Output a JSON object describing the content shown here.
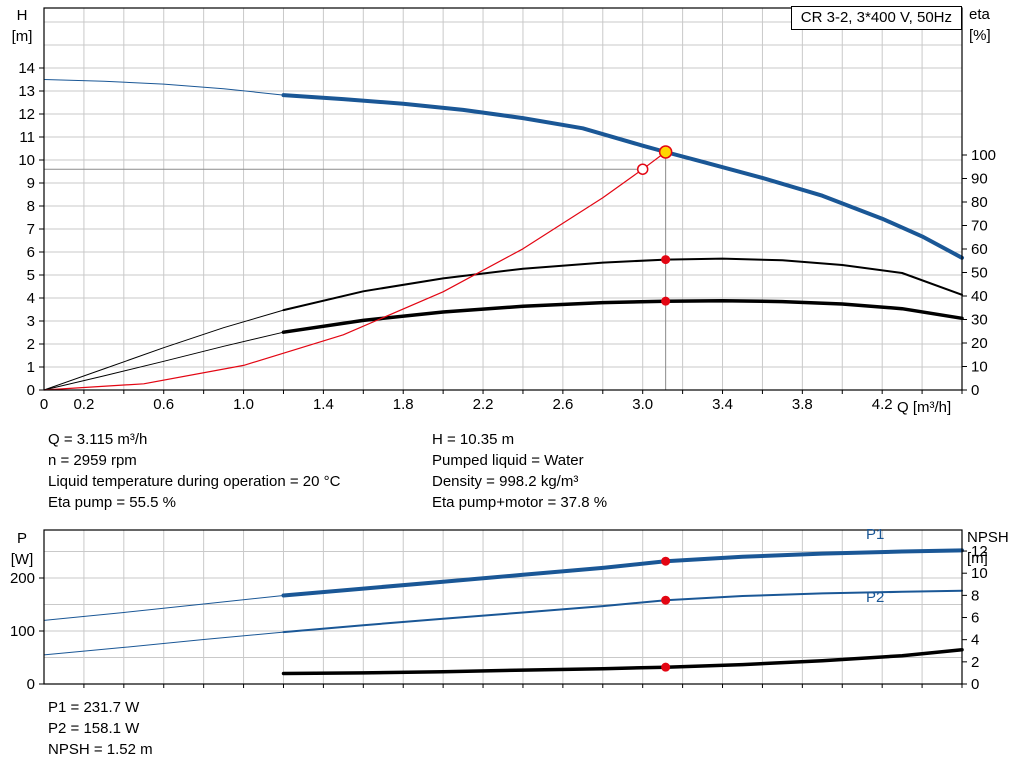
{
  "title_box": "CR 3-2, 3*400 V, 50Hz",
  "colors": {
    "blue": "#1a5796",
    "black": "#000000",
    "red": "#e30613",
    "yellow": "#ffd500",
    "grid": "#c9c9c9",
    "guide": "#8c8c8c"
  },
  "axis_labels": {
    "h_line1": "H",
    "h_line2": "[m]",
    "eta_line1": "eta",
    "eta_line2": "[%]",
    "q": "Q [m³/h]",
    "p_line1": "P",
    "p_line2": "[W]",
    "npsh_line1": "NPSH",
    "npsh_line2": "[m]"
  },
  "info": {
    "left": [
      "Q = 3.115 m³/h",
      "n = 2959 rpm",
      "Liquid temperature during operation = 20 °C",
      "Eta pump = 55.5 %"
    ],
    "right": [
      "H = 10.35 m",
      "Pumped liquid = Water",
      "Density = 998.2 kg/m³",
      "Eta pump+motor = 37.8 %"
    ],
    "bottom": [
      "P1 = 231.7 W",
      "P2 = 158.1 W",
      "NPSH = 1.52 m"
    ]
  },
  "chart_data": [
    {
      "type": "line",
      "name": "QH and efficiency curves",
      "x": {
        "label": "Q [m³/h]",
        "min": 0,
        "max": 4.6,
        "grid_step": 0.2,
        "ticks": [
          {
            "v": 0,
            "t": "0"
          },
          {
            "v": 0.2,
            "t": "0.2"
          },
          {
            "v": 0.6,
            "t": "0.6"
          },
          {
            "v": 1.0,
            "t": "1.0"
          },
          {
            "v": 1.4,
            "t": "1.4"
          },
          {
            "v": 1.8,
            "t": "1.8"
          },
          {
            "v": 2.2,
            "t": "2.2"
          },
          {
            "v": 2.6,
            "t": "2.6"
          },
          {
            "v": 3.0,
            "t": "3.0"
          },
          {
            "v": 3.4,
            "t": "3.4"
          },
          {
            "v": 3.8,
            "t": "3.8"
          },
          {
            "v": 4.2,
            "t": "4.2"
          }
        ]
      },
      "y_left": {
        "label": "H [m]",
        "min": 0,
        "max": 16.6,
        "grid_step": 1,
        "ticks": [
          0,
          1,
          2,
          3,
          4,
          5,
          6,
          7,
          8,
          9,
          10,
          11,
          12,
          13,
          14
        ]
      },
      "y_right": {
        "label": "eta [%]",
        "min": 0,
        "max": 100,
        "ticks": [
          0,
          10,
          20,
          30,
          40,
          50,
          60,
          70,
          80,
          90,
          100
        ]
      },
      "series": [
        {
          "id": "qh-curve-lead",
          "axis": "H",
          "color": "blue",
          "width": 1,
          "points": [
            [
              0,
              13.5
            ],
            [
              0.3,
              13.42
            ],
            [
              0.6,
              13.3
            ],
            [
              0.9,
              13.1
            ],
            [
              1.2,
              12.82
            ]
          ]
        },
        {
          "id": "qh-curve",
          "axis": "H",
          "color": "blue",
          "width": 4,
          "points": [
            [
              1.2,
              12.82
            ],
            [
              1.5,
              12.65
            ],
            [
              1.8,
              12.45
            ],
            [
              2.1,
              12.18
            ],
            [
              2.4,
              11.82
            ],
            [
              2.7,
              11.38
            ],
            [
              3.0,
              10.62
            ],
            [
              3.115,
              10.35
            ],
            [
              3.3,
              9.92
            ],
            [
              3.6,
              9.22
            ],
            [
              3.9,
              8.45
            ],
            [
              4.2,
              7.45
            ],
            [
              4.4,
              6.68
            ],
            [
              4.6,
              5.75
            ]
          ]
        },
        {
          "id": "eta-pump-curve-lead",
          "axis": "eta",
          "color": "black",
          "width": 1,
          "points": [
            [
              0,
              0
            ],
            [
              0.3,
              9
            ],
            [
              0.6,
              18
            ],
            [
              0.9,
              26.5
            ],
            [
              1.2,
              34
            ]
          ]
        },
        {
          "id": "eta-pump-curve",
          "axis": "eta",
          "color": "black",
          "width": 2,
          "points": [
            [
              1.2,
              34
            ],
            [
              1.6,
              42
            ],
            [
              2.0,
              47.5
            ],
            [
              2.4,
              51.6
            ],
            [
              2.8,
              54.2
            ],
            [
              3.115,
              55.5
            ],
            [
              3.4,
              55.9
            ],
            [
              3.7,
              55.2
            ],
            [
              4.0,
              53.2
            ],
            [
              4.3,
              49.8
            ],
            [
              4.6,
              40.5
            ]
          ]
        },
        {
          "id": "eta-pump-motor-curve-lead",
          "axis": "eta",
          "color": "black",
          "width": 1,
          "points": [
            [
              0,
              0
            ],
            [
              0.3,
              6
            ],
            [
              0.6,
              12.2
            ],
            [
              0.9,
              18.6
            ],
            [
              1.2,
              24.6
            ]
          ]
        },
        {
          "id": "eta-pump-motor-curve",
          "axis": "eta",
          "color": "black",
          "width": 3.5,
          "points": [
            [
              1.2,
              24.6
            ],
            [
              1.6,
              29.6
            ],
            [
              2.0,
              33.2
            ],
            [
              2.4,
              35.6
            ],
            [
              2.8,
              37.2
            ],
            [
              3.115,
              37.8
            ],
            [
              3.4,
              38.0
            ],
            [
              3.7,
              37.6
            ],
            [
              4.0,
              36.6
            ],
            [
              4.3,
              34.6
            ],
            [
              4.6,
              30.5
            ]
          ]
        },
        {
          "id": "duty-parabola",
          "axis": "H",
          "color": "red",
          "width": 1.2,
          "points": [
            [
              0,
              0
            ],
            [
              0.5,
              0.27
            ],
            [
              1.0,
              1.07
            ],
            [
              1.5,
              2.4
            ],
            [
              2.0,
              4.27
            ],
            [
              2.4,
              6.14
            ],
            [
              2.8,
              8.36
            ],
            [
              3.0,
              9.6
            ],
            [
              3.115,
              10.35
            ]
          ]
        }
      ],
      "guides": [
        {
          "dir": "h",
          "axis": "H",
          "v": 9.6,
          "q_to": 3.0
        },
        {
          "dir": "v",
          "q": 3.115,
          "axis": "H",
          "v_from": 10.35
        }
      ],
      "markers": [
        {
          "kind": "dot",
          "q": 3.115,
          "axis": "eta",
          "v": 55.5
        },
        {
          "kind": "dot",
          "q": 3.115,
          "axis": "eta",
          "v": 37.8
        },
        {
          "kind": "open-circle",
          "q": 3.0,
          "axis": "H",
          "v": 9.6
        },
        {
          "kind": "op-point",
          "q": 3.115,
          "axis": "H",
          "v": 10.35
        }
      ]
    },
    {
      "type": "line",
      "name": "Power and NPSH curves",
      "curve_labels": {
        "p1": "P1",
        "p2": "P2"
      },
      "x": {
        "label": "Q [m³/h]",
        "min": 0,
        "max": 4.6,
        "grid_step": 0.2
      },
      "y_left": {
        "label": "P [W]",
        "min": 0,
        "max": 290,
        "grid_step": 50,
        "ticks": [
          0,
          100,
          200
        ]
      },
      "y_right": {
        "label": "NPSH [m]",
        "min": 0,
        "max": 13.9,
        "ticks": [
          0,
          2,
          4,
          6,
          8,
          10,
          12
        ]
      },
      "series": [
        {
          "id": "p1-curve-lead",
          "axis": "P",
          "color": "blue",
          "width": 1,
          "points": [
            [
              0,
              120
            ],
            [
              0.4,
              135
            ],
            [
              0.8,
              151
            ],
            [
              1.2,
              167
            ]
          ]
        },
        {
          "id": "p1-curve",
          "axis": "P",
          "color": "blue",
          "width": 4,
          "points": [
            [
              1.2,
              167
            ],
            [
              1.6,
              180
            ],
            [
              2.0,
              193
            ],
            [
              2.4,
              206
            ],
            [
              2.8,
              219
            ],
            [
              3.115,
              231.7
            ],
            [
              3.5,
              240
            ],
            [
              3.9,
              246
            ],
            [
              4.3,
              250
            ],
            [
              4.6,
              252
            ]
          ]
        },
        {
          "id": "p2-curve-lead",
          "axis": "P",
          "color": "blue",
          "width": 1,
          "points": [
            [
              0,
              55
            ],
            [
              0.4,
              69
            ],
            [
              0.8,
              84
            ],
            [
              1.2,
              98
            ]
          ]
        },
        {
          "id": "p2-curve",
          "axis": "P",
          "color": "blue",
          "width": 2,
          "points": [
            [
              1.2,
              98
            ],
            [
              1.6,
              111
            ],
            [
              2.0,
              123
            ],
            [
              2.4,
              135
            ],
            [
              2.8,
              147
            ],
            [
              3.115,
              158.1
            ],
            [
              3.5,
              166
            ],
            [
              3.9,
              171
            ],
            [
              4.3,
              174
            ],
            [
              4.6,
              176
            ]
          ]
        },
        {
          "id": "npsh-curve",
          "axis": "NPSH",
          "color": "black",
          "width": 3.5,
          "points": [
            [
              1.2,
              0.95
            ],
            [
              1.6,
              1.0
            ],
            [
              2.0,
              1.1
            ],
            [
              2.4,
              1.25
            ],
            [
              2.8,
              1.38
            ],
            [
              3.115,
              1.52
            ],
            [
              3.5,
              1.75
            ],
            [
              3.9,
              2.1
            ],
            [
              4.3,
              2.55
            ],
            [
              4.6,
              3.1
            ]
          ]
        }
      ],
      "guides": [],
      "markers": [
        {
          "kind": "dot",
          "q": 3.115,
          "axis": "P",
          "v": 231.7
        },
        {
          "kind": "dot",
          "q": 3.115,
          "axis": "P",
          "v": 158.1
        },
        {
          "kind": "dot",
          "q": 3.115,
          "axis": "NPSH",
          "v": 1.52
        }
      ]
    }
  ]
}
